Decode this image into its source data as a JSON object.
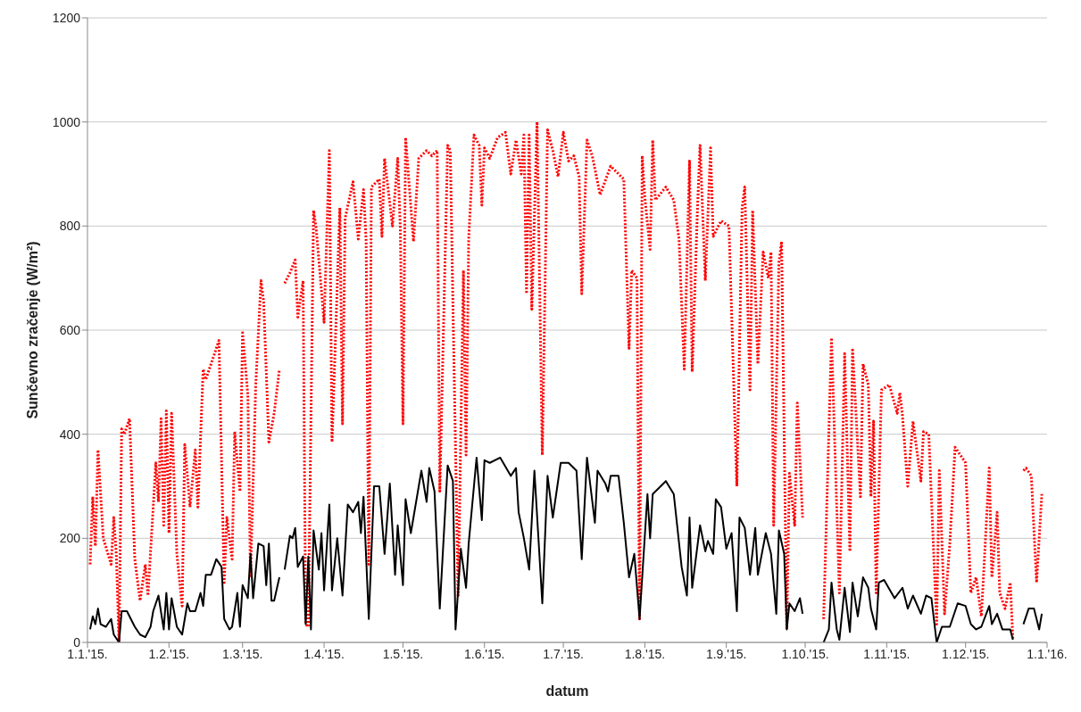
{
  "chart_data": {
    "type": "line",
    "xlabel": "datum",
    "ylabel": "Sunčevno zračenje (W/m²)",
    "xlim": [
      "2015-01-01",
      "2016-01-01"
    ],
    "xticks": [
      {
        "value": "2015-01-01",
        "label": "1.1.'15."
      },
      {
        "value": "2015-02-01",
        "label": "1.2.'15."
      },
      {
        "value": "2015-03-01",
        "label": "1.3.'15."
      },
      {
        "value": "2015-04-01",
        "label": "1.4.'15."
      },
      {
        "value": "2015-05-01",
        "label": "1.5.'15."
      },
      {
        "value": "2015-06-01",
        "label": "1.6.'15."
      },
      {
        "value": "2015-07-01",
        "label": "1.7.'15."
      },
      {
        "value": "2015-08-01",
        "label": "1.8.'15."
      },
      {
        "value": "2015-09-01",
        "label": "1.9.'15."
      },
      {
        "value": "2015-10-01",
        "label": "1.10.'15."
      },
      {
        "value": "2015-11-01",
        "label": "1.11.'15."
      },
      {
        "value": "2015-12-01",
        "label": "1.12.'15."
      },
      {
        "value": "2016-01-01",
        "label": "1.1.'16."
      }
    ],
    "ylim": [
      0,
      1200
    ],
    "yticks": [
      0,
      200,
      400,
      600,
      800,
      1000,
      1200
    ],
    "grid": "y",
    "marker": "none",
    "series": [
      {
        "color": "#ff0000",
        "line_style": "dotted",
        "x": [
          "2015-01-02",
          "2015-01-03",
          "2015-01-04",
          "2015-01-05",
          "2015-01-07",
          "2015-01-10",
          "2015-01-11",
          "2015-01-12",
          "2015-01-13",
          "2015-01-14",
          "2015-01-15",
          "2015-01-17",
          "2015-01-19",
          "2015-01-21",
          "2015-01-23",
          "2015-01-24",
          "2015-01-27",
          "2015-01-28",
          "2015-01-29",
          "2015-01-30",
          "2015-01-31",
          "2015-02-01",
          "2015-02-02",
          "2015-02-04",
          "2015-02-06",
          "2015-02-07",
          "2015-02-09",
          "2015-02-11",
          "2015-02-12",
          "2015-02-14",
          "2015-02-15",
          "2015-02-17",
          "2015-02-20",
          "2015-02-22",
          "2015-02-23",
          "2015-02-25",
          "2015-02-26",
          "2015-02-28",
          "2015-03-01",
          "2015-03-03",
          "2015-03-04",
          "2015-03-06",
          "2015-03-08",
          "2015-03-09",
          "2015-03-11",
          "2015-03-13",
          "2015-03-15",
          "2015-03-16",
          "2015-03-17",
          "2015-03-19",
          "2015-03-21",
          "2015-03-22",
          "2015-03-24",
          "2015-03-25",
          "2015-03-26",
          "2015-03-28",
          "2015-03-29",
          "2015-04-01",
          "2015-04-03",
          "2015-04-04",
          "2015-04-07",
          "2015-04-08",
          "2015-04-09",
          "2015-04-12",
          "2015-04-14",
          "2015-04-16",
          "2015-04-17",
          "2015-04-18",
          "2015-04-19",
          "2015-04-22",
          "2015-04-23",
          "2015-04-24",
          "2015-04-27",
          "2015-04-29",
          "2015-04-30",
          "2015-05-01",
          "2015-05-02",
          "2015-05-05",
          "2015-05-07",
          "2015-05-10",
          "2015-05-12",
          "2015-05-14",
          "2015-05-15",
          "2015-05-18",
          "2015-05-19",
          "2015-05-20",
          "2015-05-22",
          "2015-05-24",
          "2015-05-25",
          "2015-05-26",
          "2015-05-28",
          "2015-05-30",
          "2015-05-31",
          "2015-06-01",
          "2015-06-03",
          "2015-06-06",
          "2015-06-09",
          "2015-06-11",
          "2015-06-13",
          "2015-06-15",
          "2015-06-16",
          "2015-06-17",
          "2015-06-18",
          "2015-06-19",
          "2015-06-21",
          "2015-06-23",
          "2015-06-25",
          "2015-06-27",
          "2015-06-29",
          "2015-07-01",
          "2015-07-03",
          "2015-07-05",
          "2015-07-07",
          "2015-07-08",
          "2015-07-10",
          "2015-07-12",
          "2015-07-15",
          "2015-07-19",
          "2015-07-24",
          "2015-07-26",
          "2015-07-27",
          "2015-07-29",
          "2015-07-30",
          "2015-07-31",
          "2015-08-01",
          "2015-08-03",
          "2015-08-04",
          "2015-08-05",
          "2015-08-09",
          "2015-08-12",
          "2015-08-14",
          "2015-08-16",
          "2015-08-18",
          "2015-08-19",
          "2015-08-21",
          "2015-08-22",
          "2015-08-24",
          "2015-08-26",
          "2015-08-27",
          "2015-08-30",
          "2015-09-02",
          "2015-09-05",
          "2015-09-07",
          "2015-09-08",
          "2015-09-10",
          "2015-09-11",
          "2015-09-13",
          "2015-09-15",
          "2015-09-17",
          "2015-09-18",
          "2015-09-19",
          "2015-09-21",
          "2015-09-22",
          "2015-09-24",
          "2015-09-25",
          "2015-09-27",
          "2015-09-28",
          "2015-09-30",
          "2015-10-04",
          "2015-10-08",
          "2015-10-11",
          "2015-10-14",
          "2015-10-16",
          "2015-10-18",
          "2015-10-19",
          "2015-10-22",
          "2015-10-23",
          "2015-10-25",
          "2015-10-26",
          "2015-10-27",
          "2015-10-28",
          "2015-10-30",
          "2015-11-02",
          "2015-11-05",
          "2015-11-06",
          "2015-11-07",
          "2015-11-09",
          "2015-11-11",
          "2015-11-14",
          "2015-11-15",
          "2015-11-17",
          "2015-11-20",
          "2015-11-21",
          "2015-11-23",
          "2015-11-25",
          "2015-11-27",
          "2015-12-01",
          "2015-12-03",
          "2015-12-05",
          "2015-12-07",
          "2015-12-10",
          "2015-12-11",
          "2015-12-13",
          "2015-12-14",
          "2015-12-16",
          "2015-12-18",
          "2015-12-19",
          "2015-12-21",
          "2015-12-23",
          "2015-12-24",
          "2015-12-26",
          "2015-12-28",
          "2015-12-30"
        ],
        "values": [
          150,
          280,
          185,
          370,
          200,
          150,
          240,
          165,
          0,
          410,
          400,
          430,
          160,
          80,
          150,
          90,
          345,
          270,
          430,
          225,
          445,
          210,
          440,
          170,
          70,
          380,
          260,
          370,
          260,
          525,
          505,
          535,
          580,
          115,
          240,
          160,
          405,
          290,
          595,
          475,
          125,
          495,
          695,
          655,
          385,
          440,
          525,
          null,
          690,
          710,
          735,
          625,
          695,
          35,
          30,
          830,
          795,
          615,
          945,
          385,
          835,
          420,
          815,
          885,
          775,
          870,
          770,
          150,
          875,
          890,
          780,
          930,
          800,
          930,
          795,
          420,
          970,
          770,
          930,
          945,
          935,
          945,
          290,
          955,
          945,
          650,
          90,
          715,
          360,
          775,
          975,
          955,
          840,
          950,
          930,
          970,
          980,
          900,
          965,
          900,
          975,
          670,
          975,
          640,
          1000,
          360,
          985,
          945,
          895,
          980,
          925,
          935,
          895,
          670,
          965,
          935,
          860,
          915,
          890,
          565,
          715,
          700,
          45,
          935,
          855,
          755,
          965,
          850,
          875,
          850,
          775,
          525,
          925,
          520,
          830,
          955,
          695,
          950,
          780,
          810,
          800,
          300,
          835,
          875,
          485,
          830,
          535,
          750,
          700,
          750,
          225,
          730,
          770,
          25,
          325,
          225,
          460,
          240,
          null,
          45,
          585,
          95,
          555,
          175,
          565,
          280,
          535,
          495,
          280,
          425,
          95,
          485,
          495,
          440,
          480,
          435,
          300,
          425,
          310,
          405,
          400,
          35,
          330,
          55,
          190,
          375,
          345,
          95,
          125,
          50,
          335,
          125,
          250,
          95,
          65,
          115,
          5,
          null,
          330,
          335,
          320,
          115,
          285
        ]
      },
      {
        "color": "#000000",
        "line_style": "solid",
        "x": [
          "2015-01-02",
          "2015-01-03",
          "2015-01-04",
          "2015-01-05",
          "2015-01-06",
          "2015-01-08",
          "2015-01-10",
          "2015-01-11",
          "2015-01-13",
          "2015-01-14",
          "2015-01-16",
          "2015-01-19",
          "2015-01-21",
          "2015-01-23",
          "2015-01-25",
          "2015-01-26",
          "2015-01-28",
          "2015-01-30",
          "2015-01-31",
          "2015-02-01",
          "2015-02-02",
          "2015-02-04",
          "2015-02-06",
          "2015-02-08",
          "2015-02-09",
          "2015-02-11",
          "2015-02-13",
          "2015-02-14",
          "2015-02-15",
          "2015-02-17",
          "2015-02-19",
          "2015-02-21",
          "2015-02-22",
          "2015-02-24",
          "2015-02-25",
          "2015-02-27",
          "2015-02-28",
          "2015-03-01",
          "2015-03-03",
          "2015-03-04",
          "2015-03-05",
          "2015-03-07",
          "2015-03-09",
          "2015-03-10",
          "2015-03-11",
          "2015-03-12",
          "2015-03-13",
          "2015-03-15",
          "2015-03-16",
          "2015-03-17",
          "2015-03-19",
          "2015-03-20",
          "2015-03-21",
          "2015-03-22",
          "2015-03-24",
          "2015-03-25",
          "2015-03-26",
          "2015-03-27",
          "2015-03-28",
          "2015-03-30",
          "2015-03-31",
          "2015-04-01",
          "2015-04-03",
          "2015-04-04",
          "2015-04-06",
          "2015-04-08",
          "2015-04-10",
          "2015-04-12",
          "2015-04-14",
          "2015-04-15",
          "2015-04-16",
          "2015-04-18",
          "2015-04-20",
          "2015-04-22",
          "2015-04-24",
          "2015-04-26",
          "2015-04-28",
          "2015-04-29",
          "2015-05-01",
          "2015-05-02",
          "2015-05-04",
          "2015-05-08",
          "2015-05-10",
          "2015-05-11",
          "2015-05-13",
          "2015-05-15",
          "2015-05-18",
          "2015-05-20",
          "2015-05-21",
          "2015-05-23",
          "2015-05-25",
          "2015-05-26",
          "2015-05-29",
          "2015-05-31",
          "2015-06-01",
          "2015-06-03",
          "2015-06-07",
          "2015-06-11",
          "2015-06-13",
          "2015-06-14",
          "2015-06-16",
          "2015-06-18",
          "2015-06-20",
          "2015-06-23",
          "2015-06-25",
          "2015-06-27",
          "2015-06-30",
          "2015-07-03",
          "2015-07-06",
          "2015-07-08",
          "2015-07-10",
          "2015-07-13",
          "2015-07-14",
          "2015-07-17",
          "2015-07-18",
          "2015-07-19",
          "2015-07-22",
          "2015-07-24",
          "2015-07-26",
          "2015-07-28",
          "2015-07-30",
          "2015-08-02",
          "2015-08-03",
          "2015-08-04",
          "2015-08-06",
          "2015-08-09",
          "2015-08-12",
          "2015-08-15",
          "2015-08-17",
          "2015-08-18",
          "2015-08-19",
          "2015-08-21",
          "2015-08-22",
          "2015-08-24",
          "2015-08-25",
          "2015-08-27",
          "2015-08-28",
          "2015-08-30",
          "2015-09-01",
          "2015-09-03",
          "2015-09-05",
          "2015-09-06",
          "2015-09-08",
          "2015-09-10",
          "2015-09-12",
          "2015-09-13",
          "2015-09-16",
          "2015-09-18",
          "2015-09-20",
          "2015-09-21",
          "2015-09-23",
          "2015-09-24",
          "2015-09-25",
          "2015-09-27",
          "2015-09-29",
          "2015-09-30",
          "2015-10-04",
          "2015-10-08",
          "2015-10-10",
          "2015-10-11",
          "2015-10-13",
          "2015-10-14",
          "2015-10-16",
          "2015-10-18",
          "2015-10-19",
          "2015-10-21",
          "2015-10-23",
          "2015-10-25",
          "2015-10-26",
          "2015-10-28",
          "2015-10-29",
          "2015-10-31",
          "2015-11-04",
          "2015-11-07",
          "2015-11-09",
          "2015-11-11",
          "2015-11-14",
          "2015-11-16",
          "2015-11-18",
          "2015-11-20",
          "2015-11-22",
          "2015-11-25",
          "2015-11-28",
          "2015-12-01",
          "2015-12-03",
          "2015-12-05",
          "2015-12-07",
          "2015-12-10",
          "2015-12-11",
          "2015-12-13",
          "2015-12-15",
          "2015-12-18",
          "2015-12-19",
          "2015-12-21",
          "2015-12-23",
          "2015-12-25",
          "2015-12-27",
          "2015-12-29",
          "2015-12-30"
        ],
        "values": [
          25,
          50,
          35,
          65,
          35,
          30,
          45,
          15,
          0,
          60,
          60,
          30,
          15,
          10,
          30,
          60,
          90,
          25,
          95,
          25,
          85,
          30,
          15,
          75,
          60,
          60,
          95,
          70,
          130,
          130,
          160,
          145,
          45,
          25,
          30,
          95,
          30,
          110,
          85,
          170,
          85,
          190,
          185,
          110,
          190,
          80,
          80,
          125,
          null,
          140,
          205,
          200,
          220,
          145,
          165,
          35,
          165,
          25,
          215,
          140,
          210,
          100,
          265,
          100,
          200,
          90,
          265,
          250,
          270,
          210,
          280,
          45,
          300,
          300,
          170,
          305,
          130,
          225,
          110,
          275,
          210,
          330,
          270,
          335,
          290,
          65,
          340,
          310,
          25,
          180,
          105,
          190,
          355,
          235,
          350,
          345,
          355,
          320,
          335,
          250,
          200,
          140,
          330,
          75,
          320,
          240,
          345,
          345,
          330,
          160,
          355,
          230,
          330,
          305,
          290,
          320,
          320,
          230,
          125,
          170,
          45,
          285,
          200,
          285,
          295,
          310,
          285,
          145,
          90,
          240,
          105,
          185,
          225,
          175,
          195,
          170,
          275,
          260,
          180,
          210,
          60,
          240,
          220,
          130,
          220,
          130,
          210,
          170,
          55,
          215,
          170,
          25,
          75,
          60,
          85,
          55,
          null,
          0,
          25,
          115,
          25,
          5,
          105,
          20,
          115,
          50,
          125,
          105,
          65,
          25,
          115,
          120,
          85,
          105,
          65,
          90,
          55,
          90,
          85,
          0,
          30,
          30,
          75,
          70,
          35,
          25,
          30,
          70,
          35,
          55,
          25,
          25,
          5,
          null,
          35,
          65,
          65,
          25,
          55
        ]
      }
    ]
  }
}
